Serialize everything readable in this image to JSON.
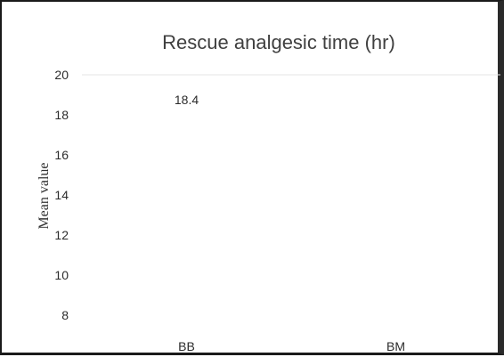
{
  "chart_data": {
    "type": "bar",
    "title": "Rescue analgesic time (hr)",
    "xlabel": "",
    "ylabel": "Mean value",
    "categories": [
      "BB",
      "BM"
    ],
    "values": [
      18.4,
      null
    ],
    "data_labels": [
      "18.4",
      ""
    ],
    "yticks": [
      "20",
      "18",
      "16",
      "14",
      "12",
      "10",
      "8"
    ],
    "ylim": [
      8,
      20
    ],
    "grid": true,
    "legend": "none"
  }
}
